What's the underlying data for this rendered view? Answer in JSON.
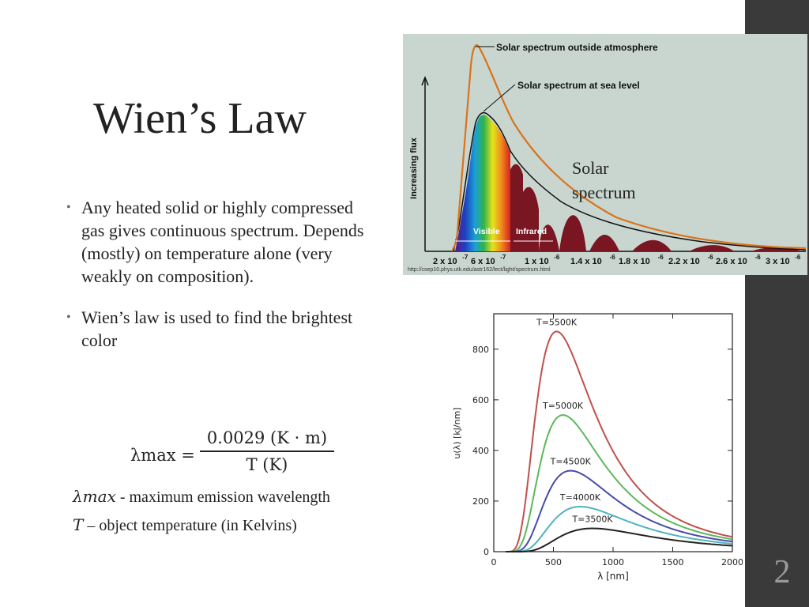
{
  "slide": {
    "title": "Wien’s Law",
    "number": "2"
  },
  "bullets": [
    "Any heated solid or highly compressed gas gives continuous spectrum. Depends (mostly) on temperature alone (very weakly on composition).",
    "Wien’s law is used to find the brightest color"
  ],
  "equation": {
    "lhs": "λmax =",
    "numerator": "0.0029  (K · m)",
    "denominator": "T (K)"
  },
  "definitions": [
    {
      "symbol": "λmax",
      "text": " - maximum emission wavelength"
    },
    {
      "symbol": "T",
      "text": " – object temperature (in Kelvins)"
    }
  ],
  "solar_label": [
    "Solar",
    "spectrum"
  ],
  "solar_chart": {
    "legend": [
      "Solar spectrum outside atmosphere",
      "Solar spectrum at sea level"
    ],
    "ylabel": "Increasing flux",
    "bands": [
      "Visible",
      "Infrared"
    ],
    "ticks": [
      "2 x 10",
      "6 x 10",
      "1 x 10",
      "1.4 x 10",
      "1.8 x 10",
      "2.2 x 10",
      "2.6 x 10",
      "3 x 10"
    ],
    "exponents": [
      "-7",
      "-7",
      "-6",
      "-6",
      "-6",
      "-6",
      "-6",
      "-6"
    ],
    "source": "http://csep10.phys.utk.edu/astr162/lect/light/spectrum.html",
    "colors": {
      "background": "#c9d6cf",
      "outside": "#d9731c",
      "absorption": "#7a1522"
    }
  },
  "chart_data": {
    "type": "line",
    "xlabel": "λ [nm]",
    "ylabel": "u(λ) [kJ/nm]",
    "xlim": [
      0,
      2000
    ],
    "ylim": [
      0,
      940
    ],
    "xticks": [
      0,
      500,
      1000,
      1500,
      2000
    ],
    "yticks": [
      0,
      200,
      400,
      600,
      800
    ],
    "grid": false,
    "series": [
      {
        "name": "T=5500K",
        "color": "#c0504d",
        "peak_x": 527,
        "peak_y": 870,
        "end_y": 70
      },
      {
        "name": "T=5000K",
        "color": "#5cb85c",
        "peak_x": 580,
        "peak_y": 540,
        "end_y": 58
      },
      {
        "name": "T=4500K",
        "color": "#4a4aa8",
        "peak_x": 644,
        "peak_y": 320,
        "end_y": 47
      },
      {
        "name": "T=4000K",
        "color": "#4fb3bf",
        "peak_x": 725,
        "peak_y": 178,
        "end_y": 37
      },
      {
        "name": "T=3500K",
        "color": "#222222",
        "peak_x": 828,
        "peak_y": 92,
        "end_y": 28
      }
    ]
  }
}
